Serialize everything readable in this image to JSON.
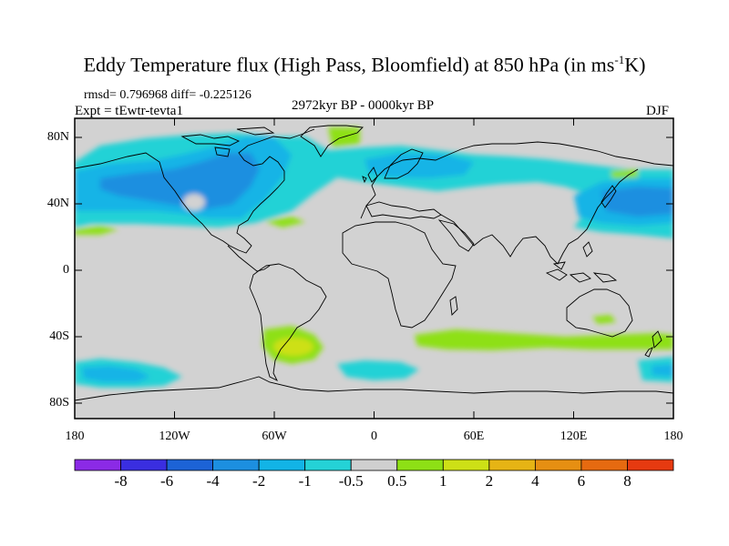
{
  "title": {
    "main": "Eddy Temperature flux (High Pass, Bloomfield) at 850 hPa (in ms",
    "sup": "-1",
    "end": "K)"
  },
  "stats": "rmsd= 0.796968 diff= -0.225126",
  "expt": "Expt = tEwtr-tevta1",
  "period": "2972kyr BP - 0000kyr BP",
  "season": "DJF",
  "axes": {
    "y_ticks": [
      "80N",
      "40N",
      "0",
      "40S",
      "80S"
    ],
    "x_ticks": [
      "180",
      "120W",
      "60W",
      "0",
      "60E",
      "120E",
      "180"
    ]
  },
  "colorbar": {
    "labels": [
      "-8",
      "-6",
      "-4",
      "-2",
      "-1",
      "-0.5",
      "0.5",
      "1",
      "2",
      "4",
      "6",
      "8"
    ],
    "colors": [
      "#8b2ae6",
      "#3a2ee0",
      "#1c63d6",
      "#1c8fe0",
      "#12b4e6",
      "#24d2d6",
      "#cfcfcf",
      "#8ee015",
      "#cde016",
      "#e6b414",
      "#e68f12",
      "#e66a10",
      "#e63a10"
    ]
  },
  "colors": {
    "land_background": "#d2d2d2",
    "coastline": "#000000"
  }
}
